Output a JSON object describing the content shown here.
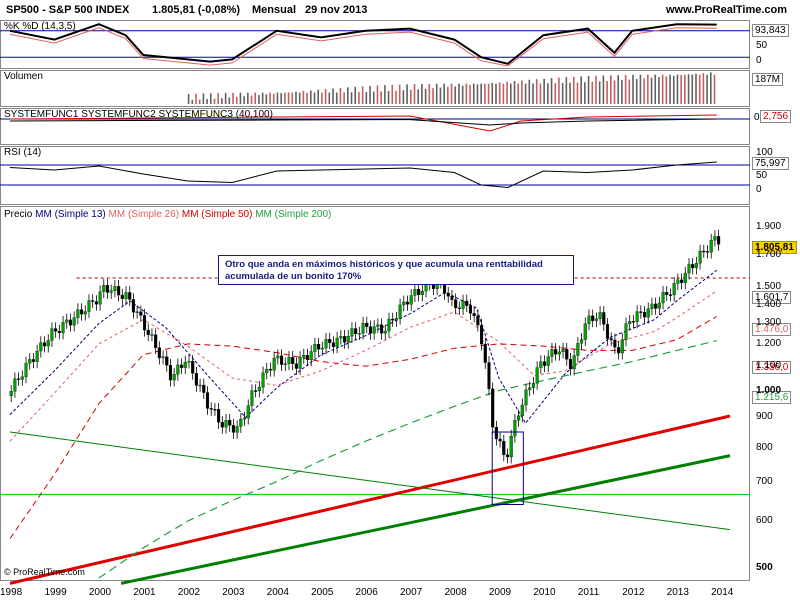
{
  "header": {
    "symbol": "SP500 - S&P 500 INDEX",
    "last": "1.805,81 (-0,08%)",
    "period": "Mensual",
    "date": "29 nov 2013",
    "site": "www.ProRealTime.com"
  },
  "panels": {
    "stoch": {
      "label": "%K %D (14,3,5)",
      "value": "93,843",
      "scale": [
        "50",
        "0"
      ]
    },
    "volume": {
      "label": "Volumen",
      "value": "187M"
    },
    "system": {
      "label": "SYSTEMFUNC1 SYSTEMFUNC2 SYSTEMFUNC3 (40,100)",
      "value_a": "0",
      "value_b": "2,756"
    },
    "rsi": {
      "label": "RSI (14)",
      "value": "75,997",
      "scale": [
        "100",
        "50",
        "0"
      ]
    },
    "price": {
      "label_parts": [
        "Precio",
        "MM (Simple 13)",
        "MM (Simple 26)",
        "MM (Simple 50)",
        "MM (Simple 200)"
      ],
      "price_box": "1.805,81",
      "value_boxes": [
        "1.601,7",
        "1.476,0",
        "1.336,0",
        "1.215,6"
      ],
      "y_ticks": [
        "1.900",
        "1.700",
        "1.500",
        "1.400",
        "1.300",
        "1.200",
        "1.100",
        "1.000",
        "900",
        "800",
        "700",
        "600",
        "500"
      ]
    }
  },
  "annotation": {
    "line1": "Otro que anda en máximos históricos y que acumula una renttabilidad",
    "line2": "acumulada de un bonito 170%"
  },
  "footer": "© ProRealTime.com",
  "colors": {
    "up": "#00a000",
    "down": "#000000",
    "mm13": "#000080",
    "mm26": "#e06060",
    "mm50": "#d00000",
    "mm200": "#20a040",
    "trend_red": "#e00000",
    "trend_green": "#008000"
  },
  "chart_data": {
    "type": "candlestick",
    "title": "SP500 - S&P 500 INDEX Mensual",
    "x_ticks": [
      "1998",
      "1999",
      "2000",
      "2001",
      "2002",
      "2003",
      "2004",
      "2005",
      "2006",
      "2007",
      "2008",
      "2009",
      "2010",
      "2011",
      "2012",
      "2013",
      "2014"
    ],
    "y_scale": "log",
    "ylim": [
      480,
      1980
    ],
    "close_series": {
      "name": "Precio",
      "x": [
        1998.0,
        1998.5,
        1999.0,
        1999.5,
        2000.0,
        2000.2,
        2000.7,
        2001.0,
        2001.3,
        2001.7,
        2002.0,
        2002.5,
        2002.8,
        2003.2,
        2003.5,
        2004.0,
        2004.5,
        2005.0,
        2005.5,
        2006.0,
        2006.5,
        2007.0,
        2007.5,
        2007.8,
        2008.0,
        2008.4,
        2008.7,
        2008.9,
        2009.2,
        2009.5,
        2010.0,
        2010.4,
        2010.7,
        2011.0,
        2011.3,
        2011.7,
        2012.0,
        2012.5,
        2013.0,
        2013.4,
        2013.9
      ],
      "y": [
        980,
        1120,
        1250,
        1330,
        1430,
        1500,
        1440,
        1320,
        1200,
        1050,
        1130,
        950,
        880,
        860,
        980,
        1130,
        1110,
        1190,
        1220,
        1280,
        1270,
        1430,
        1520,
        1510,
        1400,
        1390,
        1200,
        880,
        760,
        920,
        1110,
        1180,
        1100,
        1300,
        1350,
        1150,
        1320,
        1380,
        1500,
        1630,
        1805
      ]
    },
    "ma_series": [
      {
        "name": "MM (Simple 13)",
        "x": [
          1998.0,
          1999.0,
          2000.0,
          2000.7,
          2001.5,
          2002.5,
          2003.3,
          2004.0,
          2005.0,
          2006.0,
          2007.0,
          2007.8,
          2008.5,
          2009.0,
          2009.6,
          2010.5,
          2011.5,
          2012.5,
          2013.0,
          2013.9
        ],
        "y": [
          910,
          1080,
          1300,
          1420,
          1280,
          1050,
          900,
          1010,
          1150,
          1240,
          1350,
          1470,
          1380,
          1050,
          880,
          1070,
          1230,
          1320,
          1420,
          1601.7
        ]
      },
      {
        "name": "MM (Simple 26)",
        "x": [
          1998.0,
          1999.0,
          2000.0,
          2001.0,
          2002.0,
          2003.0,
          2004.0,
          2005.0,
          2006.0,
          2007.0,
          2008.0,
          2009.0,
          2009.8,
          2010.5,
          2011.5,
          2012.5,
          2013.0,
          2013.9
        ],
        "y": [
          820,
          990,
          1200,
          1320,
          1190,
          1050,
          1020,
          1080,
          1170,
          1280,
          1360,
          1210,
          1060,
          1080,
          1200,
          1260,
          1330,
          1476.0
        ]
      },
      {
        "name": "MM (Simple 50)",
        "x": [
          1998.0,
          1999.0,
          2000.0,
          2001.0,
          2002.0,
          2003.0,
          2004.0,
          2005.0,
          2006.0,
          2007.0,
          2008.0,
          2009.0,
          2010.0,
          2011.0,
          2012.0,
          2013.0,
          2013.9
        ],
        "y": [
          560,
          720,
          950,
          1150,
          1200,
          1190,
          1160,
          1120,
          1100,
          1130,
          1180,
          1200,
          1190,
          1170,
          1170,
          1220,
          1336.0
        ]
      },
      {
        "name": "MM (Simple 200)",
        "x": [
          2000.0,
          2001.0,
          2002.0,
          2003.0,
          2004.0,
          2005.0,
          2006.0,
          2007.0,
          2008.0,
          2009.0,
          2010.0,
          2011.0,
          2012.0,
          2013.0,
          2013.9
        ],
        "y": [
          480,
          540,
          600,
          650,
          700,
          760,
          820,
          880,
          940,
          1000,
          1040,
          1080,
          1120,
          1170,
          1215.6
        ]
      }
    ],
    "reference_levels": [
      {
        "name": "resistance",
        "y": 1553
      },
      {
        "name": "support",
        "y": 666
      }
    ],
    "trendlines": [
      {
        "name": "red",
        "x": [
          1998.0,
          2014.2
        ],
        "y": [
          470,
          905
        ]
      },
      {
        "name": "green_thick",
        "x": [
          2000.5,
          2014.2
        ],
        "y": [
          470,
          775
        ]
      },
      {
        "name": "green_thin",
        "x": [
          1998.0,
          2014.2
        ],
        "y": [
          850,
          580
        ]
      }
    ],
    "volume_trend": "rising",
    "rsi": {
      "x": [
        1998,
        1999,
        2000,
        2001,
        2002,
        2003,
        2004,
        2005,
        2006,
        2007,
        2008,
        2008.6,
        2009.2,
        2010,
        2011,
        2012,
        2013,
        2013.9
      ],
      "y": [
        65,
        60,
        68,
        52,
        38,
        35,
        58,
        60,
        62,
        64,
        55,
        30,
        25,
        58,
        55,
        60,
        70,
        76
      ]
    },
    "stoch": {
      "x": [
        1998,
        1999,
        2000,
        2000.6,
        2001,
        2002,
        2002.5,
        2003,
        2004,
        2005,
        2006,
        2007,
        2008,
        2008.6,
        2009.2,
        2010,
        2011,
        2011.6,
        2012,
        2013,
        2013.9
      ],
      "y": [
        80,
        60,
        95,
        70,
        25,
        15,
        10,
        15,
        80,
        65,
        80,
        85,
        60,
        20,
        5,
        70,
        85,
        30,
        80,
        95,
        94
      ]
    }
  }
}
